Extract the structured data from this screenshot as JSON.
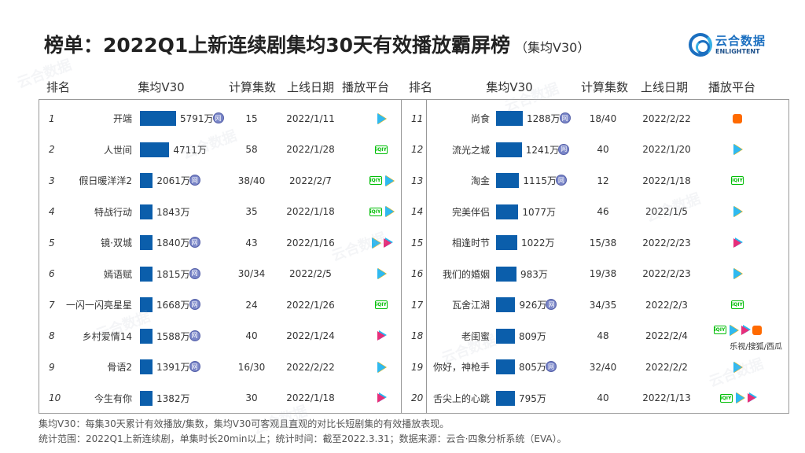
{
  "title": {
    "main": "榜单：2022Q1上新连续剧集均30天有效播放霸屏榜",
    "sub": "（集均V30）"
  },
  "logo": {
    "cn": "云合数据",
    "en": "ENLIGHTENT"
  },
  "headers": {
    "rank": "排名",
    "v30": "集均V30",
    "eps": "计算集数",
    "date": "上线日期",
    "platform": "播放平台"
  },
  "colors": {
    "bar": "#0b5eab",
    "accent": "#1b6fc0"
  },
  "chart_data": {
    "type": "bar",
    "title": "榜单：2022Q1上新连续剧集均30天有效播放霸屏榜（集均V30）",
    "unit": "万",
    "rows": [
      {
        "rank": "1",
        "name": "开端",
        "value": 5791,
        "label": "5791万",
        "badge": "网",
        "eps": "15",
        "date": "2022/1/11",
        "platforms": [
          "tencent"
        ]
      },
      {
        "rank": "2",
        "name": "人世间",
        "value": 4711,
        "label": "4711万",
        "badge": "",
        "eps": "58",
        "date": "2022/1/28",
        "platforms": [
          "iqiyi"
        ]
      },
      {
        "rank": "3",
        "name": "假日暖洋洋2",
        "value": 2061,
        "label": "2061万",
        "badge": "网",
        "eps": "38/40",
        "date": "2022/2/7",
        "platforms": [
          "iqiyi",
          "tencent"
        ]
      },
      {
        "rank": "4",
        "name": "特战行动",
        "value": 1843,
        "label": "1843万",
        "badge": "",
        "eps": "35",
        "date": "2022/1/18",
        "platforms": [
          "iqiyi",
          "tencent"
        ]
      },
      {
        "rank": "5",
        "name": "镜·双城",
        "value": 1840,
        "label": "1840万",
        "badge": "网",
        "eps": "43",
        "date": "2022/1/16",
        "platforms": [
          "tencent",
          "youku"
        ]
      },
      {
        "rank": "6",
        "name": "嫣语赋",
        "value": 1815,
        "label": "1815万",
        "badge": "网",
        "eps": "30/34",
        "date": "2022/2/5",
        "platforms": [
          "tencent"
        ]
      },
      {
        "rank": "7",
        "name": "一闪一闪亮星星",
        "value": 1668,
        "label": "1668万",
        "badge": "网",
        "eps": "24",
        "date": "2022/1/26",
        "platforms": [
          "iqiyi"
        ]
      },
      {
        "rank": "8",
        "name": "乡村爱情14",
        "value": 1588,
        "label": "1588万",
        "badge": "网",
        "eps": "40",
        "date": "2022/1/24",
        "platforms": [
          "youku"
        ]
      },
      {
        "rank": "9",
        "name": "骨语2",
        "value": 1391,
        "label": "1391万",
        "badge": "网",
        "eps": "16/30",
        "date": "2022/2/22",
        "platforms": [
          "tencent"
        ]
      },
      {
        "rank": "10",
        "name": "今生有你",
        "value": 1382,
        "label": "1382万",
        "badge": "",
        "eps": "30",
        "date": "2022/1/18",
        "platforms": [
          "youku"
        ]
      },
      {
        "rank": "11",
        "name": "尚食",
        "value": 1288,
        "label": "1288万",
        "badge": "网",
        "eps": "18/40",
        "date": "2022/2/22",
        "platforms": [
          "mango"
        ]
      },
      {
        "rank": "12",
        "name": "流光之城",
        "value": 1241,
        "label": "1241万",
        "badge": "网",
        "eps": "40",
        "date": "2022/1/20",
        "platforms": [
          "tencent"
        ]
      },
      {
        "rank": "13",
        "name": "淘金",
        "value": 1115,
        "label": "1115万",
        "badge": "网",
        "eps": "12",
        "date": "2022/1/18",
        "platforms": [
          "iqiyi"
        ]
      },
      {
        "rank": "14",
        "name": "完美伴侣",
        "value": 1077,
        "label": "1077万",
        "badge": "",
        "eps": "46",
        "date": "2022/1/5",
        "platforms": [
          "tencent"
        ]
      },
      {
        "rank": "15",
        "name": "相逢时节",
        "value": 1022,
        "label": "1022万",
        "badge": "",
        "eps": "15/38",
        "date": "2022/2/23",
        "platforms": [
          "youku"
        ]
      },
      {
        "rank": "16",
        "name": "我们的婚姻",
        "value": 983,
        "label": "983万",
        "badge": "",
        "eps": "19/38",
        "date": "2022/2/23",
        "platforms": [
          "tencent"
        ]
      },
      {
        "rank": "17",
        "name": "瓦舍江湖",
        "value": 926,
        "label": "926万",
        "badge": "网",
        "eps": "34/35",
        "date": "2022/2/3",
        "platforms": [
          "iqiyi"
        ]
      },
      {
        "rank": "18",
        "name": "老闺蜜",
        "value": 809,
        "label": "809万",
        "badge": "",
        "eps": "48",
        "date": "2022/2/4",
        "platforms": [
          "iqiyi",
          "tencent",
          "youku",
          "mango"
        ],
        "extra": "乐视/搜狐/西瓜"
      },
      {
        "rank": "19",
        "name": "你好，神枪手",
        "value": 805,
        "label": "805万",
        "badge": "网",
        "eps": "32/40",
        "date": "2022/2/2",
        "platforms": [
          "tencent"
        ]
      },
      {
        "rank": "20",
        "name": "舌尖上的心跳",
        "value": 795,
        "label": "795万",
        "badge": "",
        "eps": "40",
        "date": "2022/1/13",
        "platforms": [
          "iqiyi",
          "tencent",
          "youku"
        ]
      }
    ]
  },
  "footnotes": {
    "line1": "集均V30：每集30天累计有效播放/集数，集均V30可客观且直观的对比长短剧集的有效播放表现。",
    "line2": "统计范围：2022Q1上新连续剧，单集时长20min以上；统计时间：截至2022.3.31；数据来源：云合·四象分析系统（EVA）。"
  },
  "icons": {
    "tencent": "tencent-video-icon",
    "iqiyi": "iqiyi-icon",
    "youku": "youku-icon",
    "mango": "mango-tv-icon",
    "xigua": "xigua-icon"
  }
}
